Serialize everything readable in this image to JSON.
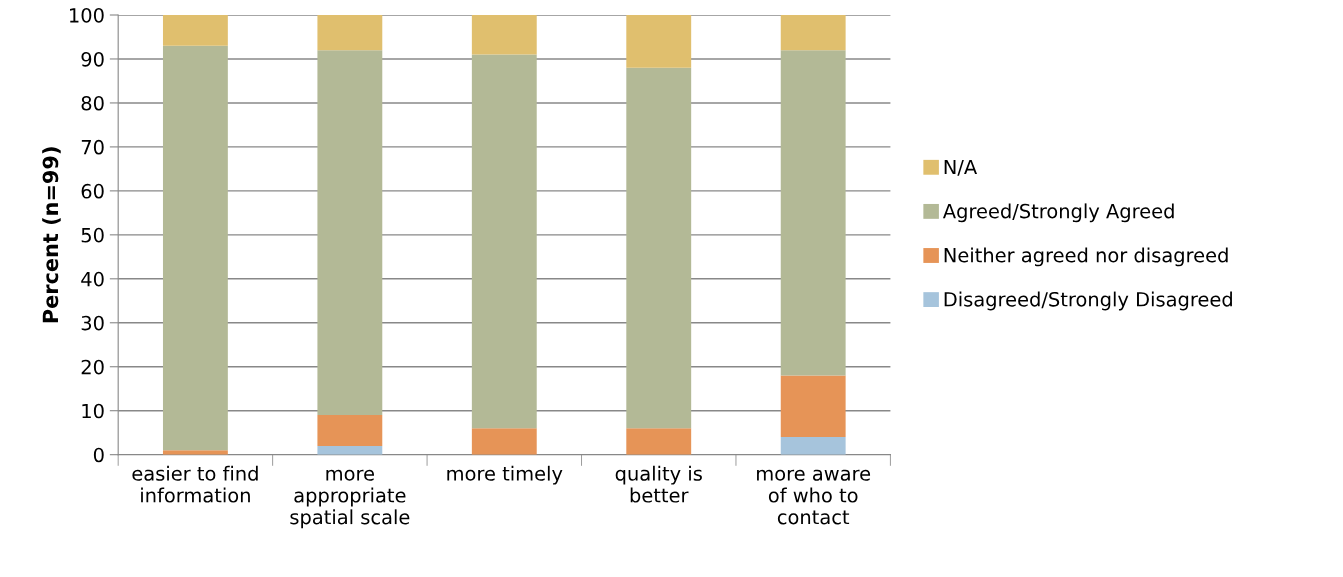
{
  "chart_data": {
    "type": "bar",
    "stacked": true,
    "ylabel": "Percent (n=99)",
    "categories": [
      "easier to find\ninformation",
      "more\nappropriate\nspatial scale",
      "more timely",
      "quality is\nbetter",
      "more aware\nof who to\ncontact"
    ],
    "series": [
      {
        "name": "Disagreed/Strongly Disagreed",
        "color": "#a6c4dc",
        "values": [
          0,
          2,
          0,
          0,
          4
        ]
      },
      {
        "name": "Neither agreed nor disagreed",
        "color": "#e69457",
        "values": [
          1,
          7,
          6,
          6,
          14
        ]
      },
      {
        "name": "Agreed/Strongly Agreed",
        "color": "#b3b996",
        "values": [
          92,
          83,
          85,
          82,
          74
        ]
      },
      {
        "name": "N/A",
        "color": "#e0bf6e",
        "values": [
          7,
          8,
          9,
          12,
          8
        ]
      }
    ],
    "ylim": [
      0,
      100
    ],
    "yticks": [
      0,
      10,
      20,
      30,
      40,
      50,
      60,
      70,
      80,
      90,
      100
    ],
    "grid": "y",
    "legend": "right"
  }
}
